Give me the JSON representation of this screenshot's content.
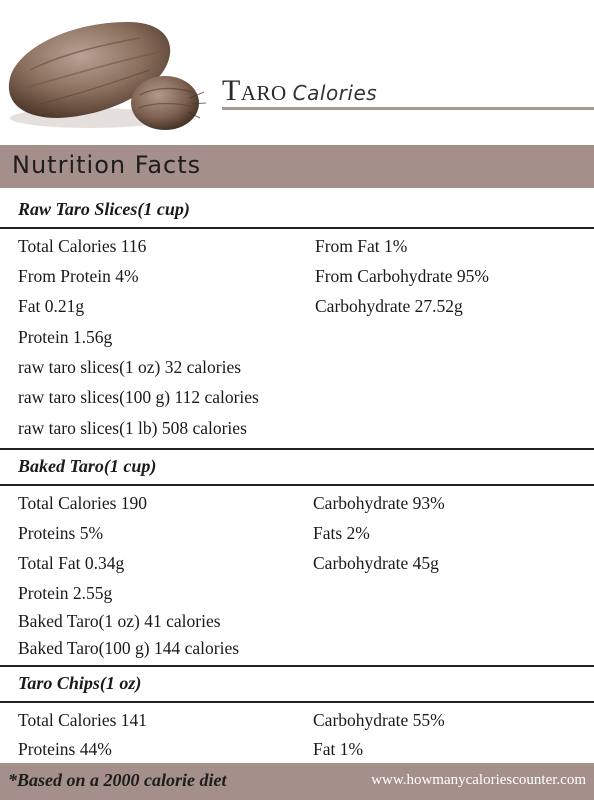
{
  "header": {
    "title_main": "Taro",
    "title_sub": "Calories",
    "banner": "Nutrition Facts"
  },
  "sections": [
    {
      "heading": "Raw Taro Slices(1 cup)",
      "left": [
        "Total Calories 116",
        "From Protein 4%",
        "Fat 0.21g",
        "Protein 1.56g",
        "raw taro slices(1 oz) 32 calories",
        "raw taro slices(100 g) 112 calories",
        "raw taro slices(1 lb) 508 calories"
      ],
      "right": [
        "From Fat 1%",
        "From Carbohydrate 95%",
        "Carbohydrate 27.52g"
      ]
    },
    {
      "heading": "Baked Taro(1 cup)",
      "left": [
        "Total Calories 190",
        "Proteins 5%",
        "Total Fat 0.34g",
        "Protein 2.55g",
        "Baked Taro(1 oz) 41 calories",
        "Baked Taro(100 g) 144 calories"
      ],
      "right": [
        "Carbohydrate 93%",
        "Fats 2%",
        "Carbohydrate 45g"
      ]
    },
    {
      "heading": "Taro Chips(1 oz)",
      "left": [
        "Total Calories 141",
        "Proteins 44%"
      ],
      "right": [
        "Carbohydrate 55%",
        "Fat 1%"
      ]
    }
  ],
  "footer": {
    "note": "*Based on a 2000 calorie diet",
    "site": "www.howmanycaloriescounter.com"
  },
  "colors": {
    "band": "#a58f8b",
    "rule": "#222222"
  }
}
